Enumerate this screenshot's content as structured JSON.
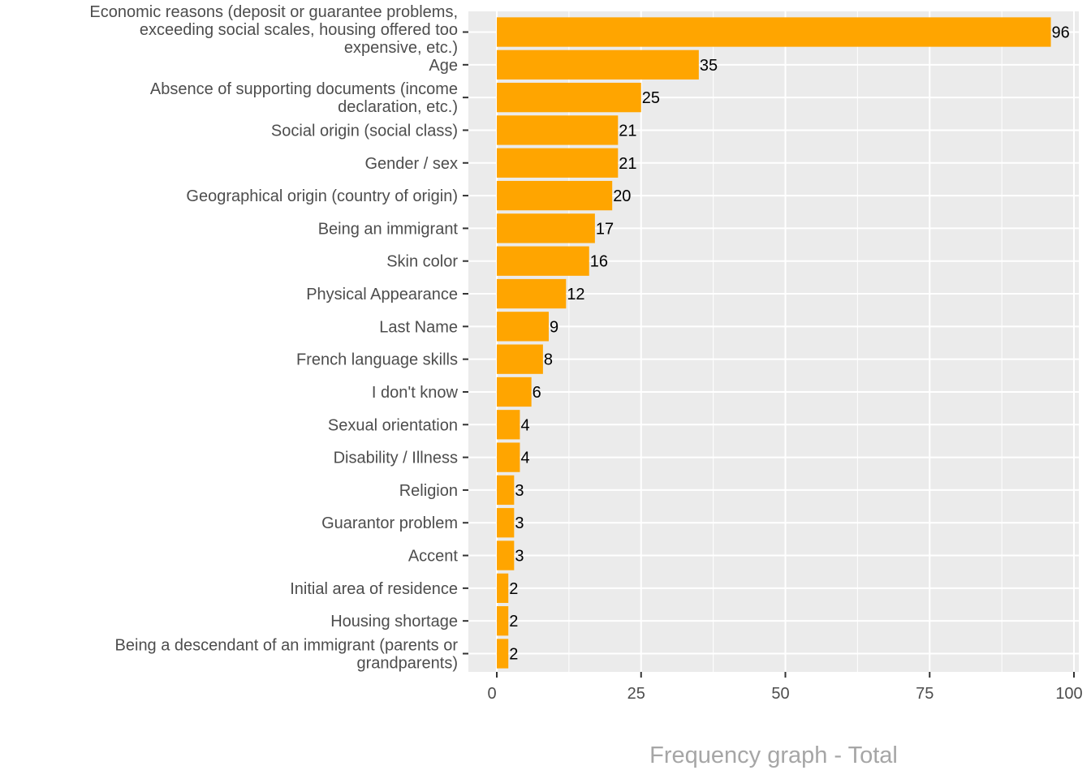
{
  "chart_data": {
    "type": "bar",
    "orientation": "horizontal",
    "title": "",
    "xlabel": "Frequency graph - Total",
    "ylabel": "",
    "xlim": [
      0,
      100
    ],
    "x_ticks": [
      0,
      25,
      50,
      75,
      100
    ],
    "grid": true,
    "categories": [
      "Economic reasons (deposit or guarantee problems, exceeding social scales, housing offered too expensive, etc.)",
      "Age",
      "Absence of supporting documents (income declaration, etc.)",
      "Social origin (social class)",
      "Gender / sex",
      "Geographical origin (country of origin)",
      "Being an immigrant",
      "Skin color",
      "Physical Appearance",
      "Last Name",
      "French language skills",
      "I don't know",
      "Sexual orientation",
      "Disability / Illness",
      "Religion",
      "Guarantor problem",
      "Accent",
      "Initial area of residence",
      "Housing shortage",
      "Being a descendant of an immigrant (parents or grandparents)"
    ],
    "category_label_lines": [
      [
        "Economic reasons (deposit or guarantee problems,",
        "exceeding social scales, housing offered too",
        "expensive, etc.)"
      ],
      [
        "Age"
      ],
      [
        "Absence of supporting documents (income",
        "declaration, etc.)"
      ],
      [
        "Social origin (social class)"
      ],
      [
        "Gender / sex"
      ],
      [
        "Geographical origin (country of origin)"
      ],
      [
        "Being an immigrant"
      ],
      [
        "Skin color"
      ],
      [
        "Physical Appearance"
      ],
      [
        "Last Name"
      ],
      [
        "French language skills"
      ],
      [
        "I don't know"
      ],
      [
        "Sexual orientation"
      ],
      [
        "Disability / Illness"
      ],
      [
        "Religion"
      ],
      [
        "Guarantor problem"
      ],
      [
        "Accent"
      ],
      [
        "Initial area of residence"
      ],
      [
        "Housing shortage"
      ],
      [
        "Being a descendant of an immigrant (parents or",
        "grandparents)"
      ]
    ],
    "values": [
      96,
      35,
      25,
      21,
      21,
      20,
      17,
      16,
      12,
      9,
      8,
      6,
      4,
      4,
      3,
      3,
      3,
      2,
      2,
      2
    ],
    "colors": {
      "bar": "#FFA500",
      "panel": "#EBEBEB",
      "grid": "#FFFFFF",
      "axis_text": "#4D4D4D",
      "title_text": "#A6A6A6"
    }
  }
}
